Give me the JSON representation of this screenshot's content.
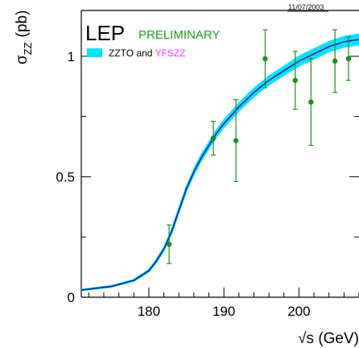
{
  "chart_data": {
    "type": "line",
    "date": "11/07/2003",
    "title": "LEP",
    "subtitle": "PRELIMINARY",
    "legend": {
      "swatch_color": "#00e5ff",
      "label_part1": "ZZTO",
      "label_and": "and",
      "label_part2": "YFSZZ",
      "placement": "top-left"
    },
    "xlabel": "√s (GeV)",
    "ylabel_main": "σ",
    "ylabel_sub": "ZZ",
    "ylabel_unit": "(pb)",
    "xlim": [
      171,
      208
    ],
    "ylim": [
      0,
      1.19
    ],
    "xticks": [
      180,
      190,
      200
    ],
    "xtick_labels": [
      "180",
      "190",
      "200"
    ],
    "yticks": [
      0,
      0.5,
      1
    ],
    "ytick_labels": [
      "0",
      "0.5",
      "1"
    ],
    "grid": false,
    "colors": {
      "title": "#000000",
      "subtitle": "#1a9f1a",
      "legend_part1": "#000000",
      "legend_and": "#000000",
      "legend_part2": "#ff33ff",
      "curve": "#1a1aa8",
      "band": "#00e5ff",
      "points": "#1a8f1a"
    },
    "theory_curve": {
      "name": "ZZTO and YFSZZ",
      "x": [
        171,
        175,
        178,
        180,
        181,
        182,
        183,
        184,
        185,
        186,
        187,
        188,
        189,
        190,
        192,
        194,
        196,
        198,
        200,
        202,
        204,
        206,
        208
      ],
      "y": [
        0.03,
        0.045,
        0.07,
        0.11,
        0.15,
        0.2,
        0.27,
        0.36,
        0.45,
        0.52,
        0.58,
        0.63,
        0.68,
        0.72,
        0.79,
        0.85,
        0.9,
        0.94,
        0.98,
        1.01,
        1.04,
        1.06,
        1.07
      ],
      "band_halfwidth": [
        0.002,
        0.002,
        0.003,
        0.004,
        0.005,
        0.006,
        0.007,
        0.008,
        0.009,
        0.01,
        0.011,
        0.012,
        0.013,
        0.014,
        0.015,
        0.016,
        0.017,
        0.018,
        0.019,
        0.02,
        0.02,
        0.021,
        0.021
      ]
    },
    "series": [
      {
        "x": [
          182.7,
          188.6,
          191.6,
          195.5,
          199.5,
          201.6,
          204.8,
          206.6
        ],
        "y": [
          0.22,
          0.66,
          0.65,
          0.99,
          0.9,
          0.81,
          0.98,
          0.99
        ],
        "yerr": [
          0.08,
          0.07,
          0.17,
          0.12,
          0.12,
          0.18,
          0.13,
          0.09
        ]
      }
    ]
  }
}
